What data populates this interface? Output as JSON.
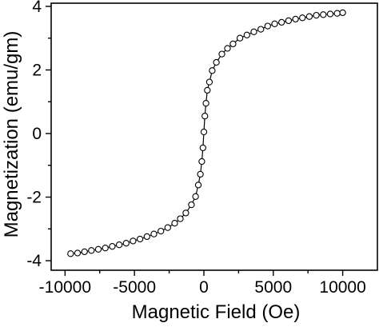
{
  "chart_data": {
    "type": "scatter",
    "title": "",
    "xlabel": "Magnetic Field (Oe)",
    "ylabel": "Magnetization (emu/gm)",
    "xlim": [
      -11000,
      12500
    ],
    "ylim": [
      -4.3,
      4.1
    ],
    "xticks": [
      -10000,
      -5000,
      0,
      5000,
      10000
    ],
    "yticks": [
      -4,
      -2,
      0,
      2,
      4
    ],
    "xtick_labels": [
      "-10000",
      "-5000",
      "0",
      "5000",
      "10000"
    ],
    "ytick_labels": [
      "-4",
      "-2",
      "0",
      "2",
      "4"
    ],
    "grid": false,
    "legend": "none",
    "marker": "open-circle",
    "line_color": "#000000",
    "series": [
      {
        "x": [
          -9600,
          -9100,
          -8600,
          -8100,
          -7600,
          -7100,
          -6600,
          -6100,
          -5600,
          -5100,
          -4600,
          -4100,
          -3600,
          -3100,
          -2600,
          -2100,
          -1700,
          -1300,
          -900,
          -600,
          -400,
          -250,
          -150,
          -70,
          0,
          70,
          150,
          250,
          400,
          600,
          900,
          1300,
          1700,
          2100,
          2600,
          3100,
          3600,
          4100,
          4600,
          5100,
          5600,
          6100,
          6600,
          7100,
          7600,
          8100,
          8600,
          9100,
          9600,
          10000
        ],
        "y": [
          -3.78,
          -3.76,
          -3.72,
          -3.68,
          -3.64,
          -3.6,
          -3.55,
          -3.5,
          -3.45,
          -3.38,
          -3.32,
          -3.24,
          -3.16,
          -3.07,
          -2.96,
          -2.82,
          -2.68,
          -2.5,
          -2.24,
          -1.98,
          -1.62,
          -1.28,
          -0.88,
          -0.45,
          0.05,
          0.55,
          0.95,
          1.36,
          1.62,
          1.98,
          2.24,
          2.5,
          2.68,
          2.82,
          3.0,
          3.1,
          3.2,
          3.28,
          3.38,
          3.45,
          3.5,
          3.55,
          3.6,
          3.64,
          3.68,
          3.72,
          3.74,
          3.76,
          3.78,
          3.8
        ]
      }
    ]
  }
}
